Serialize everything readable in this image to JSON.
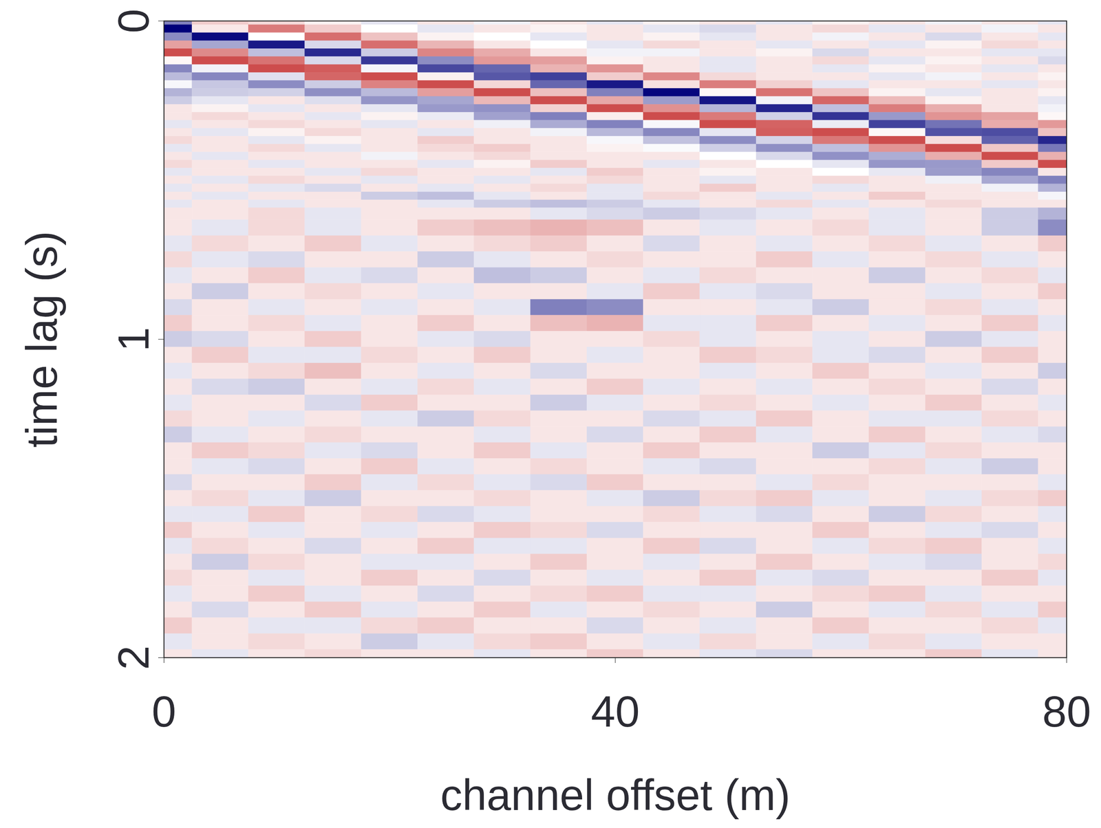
{
  "chart_data": {
    "type": "heatmap",
    "xlabel": "channel offset (m)",
    "ylabel": "time lag (s)",
    "xlim": [
      0,
      80
    ],
    "xticks": [
      0,
      40,
      80
    ],
    "ylim": [
      0,
      2
    ],
    "yticks": [
      0,
      1,
      2
    ],
    "colors": [
      "#00007a",
      "#ffffff",
      "#b80000"
    ],
    "color_range": [
      -1,
      1
    ],
    "x": [
      0,
      5,
      10,
      15,
      20,
      25,
      30,
      35,
      40,
      45,
      50,
      55,
      60,
      65,
      70,
      75,
      80
    ],
    "y": [
      0,
      0.025,
      0.05,
      0.075,
      0.1,
      0.125,
      0.15,
      0.175,
      0.2,
      0.225,
      0.25,
      0.275,
      0.3,
      0.325,
      0.35,
      0.375,
      0.4,
      0.425,
      0.45,
      0.475,
      0.5,
      0.525,
      0.55,
      0.575,
      0.6,
      0.65,
      0.7,
      0.75,
      0.8,
      0.85,
      0.9,
      0.95,
      1.0,
      1.05,
      1.1,
      1.15,
      1.2,
      1.25,
      1.3,
      1.35,
      1.4,
      1.45,
      1.5,
      1.55,
      1.6,
      1.65,
      1.7,
      1.75,
      1.8,
      1.85,
      1.9,
      1.95,
      2.0
    ],
    "values": [
      [
        -0.5,
        0.2,
        0.15,
        0.05,
        -0.1,
        0.1,
        -0.05,
        0.1,
        -0.1,
        0.05,
        0.1,
        -0.1,
        0.05,
        0.1,
        -0.05,
        0.1,
        -0.1
      ],
      [
        -1.0,
        0.09,
        0.52,
        0.2,
        0.0,
        -0.1,
        0.1,
        0.05,
        0.1,
        -0.1,
        -0.15,
        0.1,
        0.15,
        -0.1,
        0.1,
        -0.05,
        0.1
      ],
      [
        -0.46,
        -0.96,
        0.0,
        0.57,
        0.24,
        0.05,
        0.0,
        -0.1,
        0.1,
        0.05,
        -0.1,
        0.1,
        -0.05,
        0.1,
        -0.15,
        0.1,
        -0.1
      ],
      [
        0.37,
        -0.35,
        -0.9,
        -0.15,
        0.57,
        0.29,
        0.1,
        0.0,
        -0.1,
        0.15,
        0.1,
        -0.1,
        0.1,
        -0.1,
        0.05,
        0.15,
        0.1
      ],
      [
        0.7,
        0.46,
        -0.25,
        -0.84,
        -0.2,
        0.48,
        0.33,
        0.1,
        -0.05,
        -0.05,
        0.1,
        0.05,
        -0.15,
        0.1,
        0.1,
        -0.1,
        -0.1
      ],
      [
        0.03,
        0.7,
        0.55,
        -0.15,
        -0.78,
        -0.45,
        0.4,
        0.38,
        0.05,
        0.1,
        -0.1,
        0.1,
        0.15,
        -0.1,
        0.05,
        0.1,
        -0.15
      ],
      [
        -0.48,
        -0.05,
        0.7,
        0.64,
        -0.04,
        -0.72,
        -0.6,
        0.3,
        0.42,
        0.1,
        -0.1,
        0.1,
        -0.1,
        0.05,
        0.1,
        -0.1,
        0.1
      ],
      [
        -0.27,
        -0.47,
        -0.12,
        0.6,
        0.7,
        0.06,
        -0.66,
        -0.75,
        0.2,
        0.47,
        0.15,
        0.1,
        0.1,
        -0.1,
        -0.05,
        0.1,
        0.05
      ],
      [
        -0.03,
        -0.22,
        -0.45,
        -0.2,
        0.49,
        0.7,
        0.16,
        -0.6,
        -0.9,
        0.12,
        0.51,
        0.18,
        -0.1,
        0.1,
        0.1,
        -0.1,
        0.1
      ],
      [
        -0.3,
        -0.2,
        -0.18,
        -0.44,
        -0.27,
        0.38,
        0.7,
        0.25,
        -0.5,
        -0.98,
        0.03,
        0.55,
        0.23,
        0.05,
        -0.1,
        0.1,
        0.05
      ],
      [
        -0.2,
        -0.1,
        0.1,
        -0.13,
        -0.42,
        -0.35,
        0.28,
        0.7,
        0.34,
        -0.39,
        -0.92,
        -0.05,
        0.6,
        0.27,
        0.05,
        0.1,
        -0.1
      ],
      [
        0.1,
        0.05,
        -0.1,
        0.1,
        -0.1,
        -0.4,
        -0.43,
        0.18,
        0.7,
        0.43,
        -0.29,
        -0.86,
        -0.25,
        0.51,
        0.32,
        0.1,
        -0.05
      ],
      [
        0.1,
        0.15,
        0.1,
        -0.1,
        0.05,
        -0.08,
        -0.37,
        -0.5,
        0.07,
        0.7,
        0.52,
        -0.18,
        -0.8,
        -0.4,
        0.42,
        0.36,
        0.03
      ],
      [
        -0.1,
        0.1,
        0.15,
        0.1,
        -0.1,
        0.1,
        -0.06,
        -0.33,
        -0.49,
        -0.03,
        0.7,
        0.61,
        -0.08,
        -0.74,
        -0.55,
        0.33,
        0.4
      ],
      [
        0.1,
        -0.1,
        0.05,
        0.15,
        0.1,
        -0.1,
        0.1,
        -0.05,
        -0.28,
        -0.47,
        -0.1,
        0.63,
        0.7,
        0.03,
        -0.68,
        -0.7,
        0.24
      ],
      [
        0.15,
        0.1,
        -0.1,
        0.05,
        0.1,
        0.2,
        0.1,
        0.1,
        -0.03,
        -0.24,
        -0.45,
        -0.17,
        0.53,
        0.7,
        0.13,
        -0.62,
        -0.85
      ],
      [
        -0.1,
        0.1,
        0.15,
        -0.1,
        0.1,
        0.15,
        0.2,
        0.1,
        0.05,
        -0.02,
        -0.19,
        -0.44,
        -0.25,
        0.42,
        0.7,
        0.22,
        -0.53
      ],
      [
        0.1,
        -0.1,
        0.1,
        0.1,
        -0.05,
        0.1,
        0.15,
        0.1,
        0.1,
        0.1,
        0.0,
        -0.15,
        -0.43,
        -0.32,
        0.32,
        0.7,
        0.31
      ],
      [
        0.15,
        0.1,
        -0.1,
        0.1,
        0.1,
        -0.1,
        0.05,
        0.2,
        0.1,
        -0.1,
        0.1,
        0.0,
        -0.1,
        -0.41,
        -0.4,
        0.21,
        0.7
      ],
      [
        -0.1,
        0.1,
        0.1,
        -0.1,
        0.15,
        0.1,
        0.1,
        -0.1,
        0.2,
        0.1,
        0.05,
        0.1,
        0.0,
        -0.09,
        -0.39,
        -0.48,
        0.1
      ],
      [
        0.1,
        -0.1,
        0.15,
        0.1,
        -0.1,
        0.1,
        -0.1,
        0.1,
        0.15,
        0.1,
        -0.1,
        0.1,
        0.15,
        0.1,
        -0.06,
        -0.34,
        -0.5
      ],
      [
        -0.1,
        0.1,
        -0.1,
        -0.15,
        0.1,
        -0.1,
        0.1,
        0.15,
        -0.1,
        0.1,
        0.2,
        0.1,
        -0.1,
        0.1,
        0.1,
        -0.05,
        -0.3
      ],
      [
        0.1,
        -0.1,
        0.1,
        0.1,
        -0.2,
        -0.25,
        -0.1,
        0.1,
        -0.1,
        0.15,
        0.1,
        -0.1,
        0.1,
        0.2,
        0.1,
        0.1,
        -0.04
      ],
      [
        -0.1,
        0.1,
        -0.1,
        0.1,
        0.1,
        -0.1,
        -0.2,
        -0.25,
        -0.2,
        -0.1,
        0.1,
        0.15,
        -0.1,
        0.1,
        0.15,
        0.1,
        0.1
      ],
      [
        0.1,
        0.1,
        0.15,
        -0.1,
        0.1,
        0.1,
        0.1,
        -0.1,
        -0.15,
        -0.2,
        -0.15,
        -0.1,
        0.1,
        -0.1,
        0.1,
        -0.2,
        -0.3
      ],
      [
        0.1,
        -0.1,
        0.15,
        -0.1,
        0.1,
        0.2,
        0.25,
        0.3,
        0.25,
        0.1,
        -0.1,
        0.1,
        0.15,
        -0.1,
        0.1,
        -0.2,
        -0.45
      ],
      [
        -0.1,
        0.15,
        0.1,
        0.2,
        -0.1,
        0.1,
        0.15,
        0.2,
        0.1,
        -0.15,
        0.1,
        -0.1,
        0.1,
        0.15,
        -0.1,
        0.1,
        0.2
      ],
      [
        0.15,
        -0.1,
        -0.15,
        0.1,
        0.1,
        -0.2,
        -0.1,
        0.1,
        0.15,
        0.1,
        0.1,
        0.2,
        -0.1,
        0.1,
        0.15,
        -0.1,
        0.1
      ],
      [
        -0.1,
        0.1,
        0.2,
        -0.1,
        -0.15,
        0.1,
        -0.25,
        -0.2,
        0.1,
        -0.1,
        0.15,
        0.1,
        0.1,
        -0.2,
        0.1,
        0.15,
        -0.1
      ],
      [
        0.1,
        -0.2,
        0.1,
        0.15,
        0.1,
        -0.1,
        0.1,
        0.1,
        -0.1,
        0.2,
        -0.1,
        -0.15,
        0.1,
        0.1,
        -0.1,
        0.1,
        0.2
      ],
      [
        -0.15,
        0.1,
        -0.1,
        0.1,
        -0.1,
        0.1,
        -0.1,
        -0.5,
        -0.45,
        0.1,
        0.1,
        -0.1,
        -0.2,
        0.1,
        0.15,
        -0.1,
        0.1
      ],
      [
        0.2,
        0.1,
        0.15,
        -0.1,
        0.1,
        0.2,
        0.1,
        0.25,
        0.3,
        -0.1,
        -0.1,
        0.2,
        0.1,
        -0.1,
        0.1,
        0.2,
        -0.1
      ],
      [
        -0.2,
        -0.15,
        0.1,
        0.2,
        0.1,
        -0.1,
        -0.15,
        0.1,
        0.1,
        0.15,
        -0.1,
        0.1,
        -0.1,
        0.1,
        -0.2,
        -0.1,
        0.1
      ],
      [
        0.1,
        0.2,
        -0.1,
        -0.1,
        0.15,
        0.1,
        0.2,
        0.1,
        -0.1,
        0.1,
        0.2,
        0.15,
        -0.1,
        -0.15,
        0.1,
        0.2,
        0.1
      ],
      [
        -0.1,
        0.1,
        0.15,
        0.25,
        0.1,
        -0.1,
        0.1,
        -0.15,
        0.1,
        0.1,
        -0.1,
        0.1,
        0.2,
        0.1,
        -0.1,
        0.1,
        -0.2
      ],
      [
        0.1,
        -0.15,
        -0.2,
        0.1,
        -0.1,
        0.15,
        -0.1,
        0.1,
        0.2,
        -0.1,
        0.1,
        -0.1,
        0.1,
        0.15,
        0.1,
        -0.15,
        0.1
      ],
      [
        -0.1,
        0.1,
        0.1,
        -0.15,
        0.2,
        0.1,
        0.1,
        -0.2,
        -0.1,
        0.1,
        0.15,
        0.1,
        -0.1,
        0.1,
        0.2,
        0.1,
        -0.1
      ],
      [
        0.15,
        0.1,
        -0.1,
        0.1,
        -0.1,
        -0.2,
        0.15,
        0.1,
        0.1,
        -0.15,
        -0.1,
        0.2,
        0.1,
        -0.1,
        -0.1,
        0.15,
        0.1
      ],
      [
        -0.2,
        -0.1,
        0.1,
        0.15,
        0.1,
        0.1,
        -0.1,
        0.1,
        -0.15,
        0.1,
        0.2,
        -0.1,
        0.1,
        0.2,
        0.1,
        -0.1,
        -0.15
      ],
      [
        0.1,
        0.2,
        0.15,
        -0.1,
        -0.15,
        0.1,
        0.2,
        -0.1,
        0.1,
        0.2,
        0.1,
        0.1,
        -0.2,
        -0.1,
        0.15,
        0.1,
        0.1
      ],
      [
        0.1,
        -0.1,
        -0.15,
        0.1,
        0.2,
        -0.1,
        0.1,
        0.15,
        0.1,
        -0.1,
        -0.15,
        0.1,
        0.1,
        0.15,
        -0.1,
        -0.2,
        0.1
      ],
      [
        -0.15,
        0.1,
        0.1,
        0.2,
        -0.1,
        0.15,
        -0.1,
        -0.15,
        0.2,
        0.1,
        0.1,
        -0.1,
        0.15,
        0.1,
        0.1,
        0.1,
        -0.1
      ],
      [
        0.1,
        0.15,
        -0.1,
        -0.2,
        0.1,
        0.1,
        0.15,
        0.1,
        -0.1,
        -0.2,
        0.15,
        0.2,
        -0.1,
        0.1,
        -0.1,
        0.15,
        0.2
      ],
      [
        -0.1,
        -0.1,
        0.2,
        0.1,
        0.15,
        -0.15,
        -0.1,
        0.1,
        0.1,
        0.15,
        -0.1,
        -0.15,
        0.1,
        -0.2,
        0.15,
        0.1,
        -0.1
      ],
      [
        0.2,
        0.1,
        -0.1,
        0.1,
        -0.1,
        0.1,
        0.2,
        0.15,
        -0.15,
        0.1,
        0.1,
        0.1,
        0.2,
        0.1,
        -0.1,
        -0.15,
        0.1
      ],
      [
        -0.1,
        0.15,
        0.1,
        -0.15,
        0.1,
        0.2,
        -0.1,
        -0.1,
        0.1,
        0.2,
        -0.15,
        0.1,
        -0.1,
        0.15,
        0.2,
        0.1,
        -0.1
      ],
      [
        0.1,
        -0.2,
        0.15,
        0.1,
        -0.1,
        -0.1,
        0.1,
        0.2,
        0.1,
        -0.1,
        0.1,
        0.2,
        0.1,
        -0.1,
        -0.15,
        0.1,
        0.15
      ],
      [
        0.15,
        0.1,
        -0.1,
        0.1,
        0.2,
        0.1,
        -0.15,
        0.1,
        -0.1,
        0.1,
        0.2,
        -0.1,
        -0.15,
        0.1,
        0.1,
        0.2,
        -0.1
      ],
      [
        -0.1,
        0.1,
        0.2,
        -0.1,
        0.1,
        -0.15,
        0.1,
        0.15,
        0.2,
        -0.1,
        -0.1,
        0.1,
        0.15,
        0.2,
        -0.1,
        0.1,
        0.1
      ],
      [
        0.1,
        -0.15,
        0.1,
        0.2,
        -0.1,
        0.1,
        0.2,
        -0.1,
        0.1,
        0.15,
        0.1,
        -0.2,
        0.1,
        -0.1,
        0.15,
        -0.1,
        0.2
      ],
      [
        0.2,
        0.1,
        -0.1,
        -0.1,
        0.15,
        0.2,
        0.1,
        0.1,
        -0.15,
        0.1,
        -0.1,
        0.1,
        0.2,
        0.1,
        0.1,
        0.15,
        -0.1
      ],
      [
        -0.1,
        0.1,
        0.15,
        0.1,
        -0.2,
        -0.1,
        0.15,
        0.2,
        0.1,
        -0.1,
        0.15,
        0.1,
        -0.1,
        0.15,
        -0.1,
        0.1,
        0.1
      ],
      [
        0.1,
        -0.1,
        0.1,
        0.15,
        0.1,
        0.1,
        -0.1,
        0.1,
        0.2,
        0.1,
        -0.1,
        -0.15,
        0.1,
        0.1,
        0.2,
        -0.1,
        0.1
      ]
    ]
  }
}
